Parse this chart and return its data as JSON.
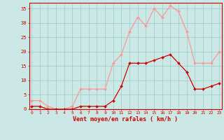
{
  "x": [
    0,
    1,
    2,
    3,
    4,
    5,
    6,
    7,
    8,
    9,
    10,
    11,
    12,
    13,
    14,
    15,
    16,
    17,
    18,
    19,
    20,
    21,
    22,
    23
  ],
  "wind_avg": [
    1,
    1,
    0,
    0,
    0,
    0,
    1,
    1,
    1,
    1,
    3,
    8,
    16,
    16,
    16,
    17,
    18,
    19,
    16,
    13,
    7,
    7,
    8,
    9
  ],
  "wind_gust": [
    3,
    3,
    1,
    0,
    0,
    1,
    7,
    7,
    7,
    7,
    16,
    19,
    27,
    32,
    29,
    35,
    32,
    36,
    34,
    27,
    16,
    16,
    16,
    20
  ],
  "background_color": "#cce8e4",
  "grid_color": "#99cccc",
  "avg_color": "#cc0000",
  "gust_color": "#ff9999",
  "xlabel": "Vent moyen/en rafales ( km/h )",
  "tick_color": "#cc0000",
  "ylim": [
    0,
    37
  ],
  "yticks": [
    0,
    5,
    10,
    15,
    20,
    25,
    30,
    35
  ],
  "xlim": [
    -0.3,
    23.3
  ],
  "marker_size": 2.0,
  "linewidth": 0.9
}
